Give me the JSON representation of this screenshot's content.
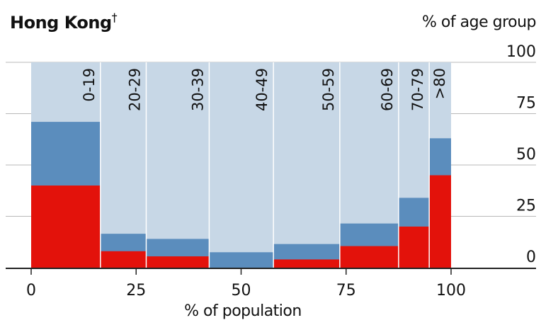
{
  "chart_data": {
    "type": "marimekko",
    "title": "Hong Kong",
    "title_mark": "†",
    "y_unit_label": "% of age group",
    "xlabel": "% of population",
    "xlim": [
      0,
      100
    ],
    "ylim": [
      0,
      100
    ],
    "x_ticks": [
      0,
      25,
      50,
      75,
      100
    ],
    "y_ticks": [
      0,
      25,
      50,
      75,
      100
    ],
    "grid": true,
    "colors": {
      "background": "#c7d7e6",
      "blue": "#5b8dbd",
      "red": "#e3120b",
      "divider": "#ffffff"
    },
    "categories": [
      "0-19",
      "20-29",
      "30-39",
      "40-49",
      "50-59",
      "60-69",
      "70-79",
      ">80"
    ],
    "widths": [
      16.5,
      10.9,
      15,
      15.3,
      15.8,
      14,
      7.3,
      5.2
    ],
    "series": [
      {
        "values": [
          40,
          8,
          5.5,
          0,
          4,
          10.5,
          20,
          45
        ],
        "color": "#e3120b"
      },
      {
        "values": [
          71,
          16.5,
          14,
          7.5,
          11.5,
          21.5,
          34,
          63
        ],
        "color": "#5b8dbd"
      }
    ]
  }
}
